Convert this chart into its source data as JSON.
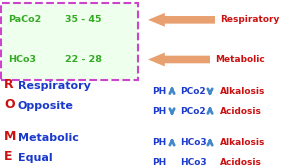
{
  "bg_color": "#ffffff",
  "box_border_color": "#cc44cc",
  "box_fill_color": "#eeffee",
  "paco2_label": "PaCo2",
  "paco2_range": "35 - 45",
  "hco3_label": "HCo3",
  "hco3_range": "22 - 28",
  "arrow_color": "#e8a070",
  "resp_arrow_label": "Respiratory",
  "metab_arrow_label": "Metabolic",
  "rom_r": "R",
  "rom_o": "O",
  "rom_m": "M",
  "rom_e": "E",
  "rom_r_word": "Respiratory",
  "rom_o_word": "Opposite",
  "rom_m_word": "Metabolic",
  "rom_e_word": "Equal",
  "rom_color": "#cc1111",
  "word_color": "#1a3acc",
  "ph_label": "PH",
  "pco2_label": "PCo2",
  "hco3s_label": "HCo3",
  "alkalosis_label": "Alkalosis",
  "acidosis_label": "Acidosis",
  "cond_color": "#cc1111",
  "arrow_blue": "#4488cc",
  "label_color_green": "#33aa22"
}
